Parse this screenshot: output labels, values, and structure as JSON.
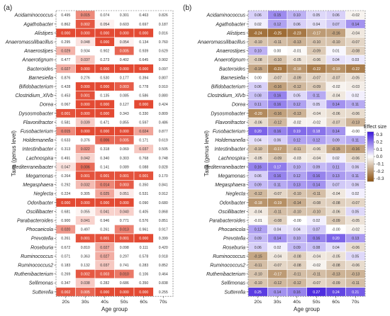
{
  "chart_data": [
    {
      "panel": "(a)",
      "type": "heatmap",
      "xlabel": "Age group",
      "ylabel": "Taxa (genus level)",
      "x": [
        "20s",
        "30s",
        "40s",
        "50s",
        "60s",
        "70s"
      ],
      "y": [
        "Acidaminococcus",
        "Agathobacter",
        "Alistipes",
        "Anaeromassilibacillus",
        "Anaerostipes",
        "Anaerotignum",
        "Bacteroides",
        "Barnesiella",
        "Bifidobacterium",
        "Clostridium_XlVb",
        "Dorea",
        "Dysosmobacter",
        "Flavonifractor",
        "Fusobacterium",
        "Holdemanella",
        "Intestinibacter",
        "Lachnospira",
        "Mediterraneibacter",
        "Megamonas",
        "Megasphaera",
        "Neglecta",
        "Odoribacter",
        "Oscillibacter",
        "Parabacteroides",
        "Phocaeicola",
        "Prevotella",
        "Roseburia",
        "Ruminococcus",
        "Ruminococcus2",
        "Ruthenibacterium",
        "Sellimonas",
        "Sutterella"
      ],
      "values": [
        [
          "0.495",
          "0.015",
          "0.074",
          "0.301",
          "0.463",
          "0.826"
        ],
        [
          "0.862",
          "0.002",
          "0.054",
          "0.603",
          "0.697",
          "0.187"
        ],
        [
          "0.000",
          "0.000",
          "0.000",
          "0.000",
          "0.000",
          "0.816"
        ],
        [
          "0.295",
          "0.048",
          "0.000",
          "0.054",
          "0.134",
          "0.760"
        ],
        [
          "0.029",
          "0.934",
          "0.902",
          "0.005",
          "0.939",
          "0.629"
        ],
        [
          "0.477",
          "0.037",
          "0.273",
          "0.402",
          "0.645",
          "0.902"
        ],
        [
          "0.027",
          "0.000",
          "0.000",
          "0.000",
          "0.000",
          "0.097"
        ],
        [
          "0.876",
          "0.276",
          "0.530",
          "0.177",
          "0.394",
          "0.807"
        ],
        [
          "0.428",
          "0.000",
          "0.000",
          "0.003",
          "0.778",
          "0.910"
        ],
        [
          "0.453",
          "0.001",
          "0.135",
          "0.085",
          "0.586",
          "0.880"
        ],
        [
          "0.067",
          "0.000",
          "0.000",
          "0.127",
          "0.000",
          "0.424"
        ],
        [
          "0.001",
          "0.000",
          "0.000",
          "0.343",
          "0.330",
          "0.809"
        ],
        [
          "0.581",
          "0.039",
          "0.471",
          "0.855",
          "0.597",
          "0.486"
        ],
        [
          "0.015",
          "0.000",
          "0.000",
          "0.000",
          "0.024",
          "0.877"
        ],
        [
          "0.633",
          "0.376",
          "0.006",
          "0.005",
          "0.171",
          "0.619"
        ],
        [
          "0.313",
          "0.022",
          "0.318",
          "0.069",
          "0.037",
          "0.505"
        ],
        [
          "0.491",
          "0.042",
          "0.340",
          "0.303",
          "0.768",
          "0.748"
        ],
        [
          "0.047",
          "0.006",
          "0.141",
          "0.089",
          "0.088",
          "0.828"
        ],
        [
          "0.264",
          "0.001",
          "0.001",
          "0.001",
          "0.001",
          "0.170"
        ],
        [
          "0.292",
          "0.032",
          "0.014",
          "0.003",
          "0.350",
          "0.841"
        ],
        [
          "0.224",
          "0.305",
          "0.025",
          "0.051",
          "0.531",
          "0.912"
        ],
        [
          "0.000",
          "0.000",
          "0.000",
          "0.000",
          "0.090",
          "0.680"
        ],
        [
          "0.681",
          "0.055",
          "0.041",
          "0.040",
          "0.405",
          "0.868"
        ],
        [
          "0.900",
          "0.041",
          "0.946",
          "0.771",
          "0.576",
          "0.851"
        ],
        [
          "0.020",
          "0.497",
          "0.261",
          "0.013",
          "0.961",
          "0.917"
        ],
        [
          "0.261",
          "0.001",
          "0.001",
          "0.001",
          "0.000",
          "0.399"
        ],
        [
          "0.672",
          "0.810",
          "0.027",
          "0.098",
          "0.111",
          "0.420"
        ],
        [
          "0.071",
          "0.363",
          "0.027",
          "0.297",
          "0.578",
          "0.918"
        ],
        [
          "0.183",
          "0.132",
          "0.037",
          "0.741",
          "0.283",
          "0.852"
        ],
        [
          "0.269",
          "0.002",
          "0.003",
          "0.010",
          "0.106",
          "0.464"
        ],
        [
          "0.347",
          "0.038",
          "0.282",
          "0.686",
          "0.350",
          "0.838"
        ],
        [
          "0.002",
          "0.005",
          "0.000",
          "0.000",
          "0.000",
          "0.255"
        ]
      ]
    },
    {
      "panel": "(b)",
      "type": "heatmap",
      "xlabel": "Age group",
      "ylabel": "Taxa (genus level)",
      "x": [
        "20s",
        "30s",
        "40s",
        "50s",
        "60s",
        "70s"
      ],
      "y": [
        "Acidaminococcus",
        "Agathobacter",
        "Alistipes",
        "Anaeromassilibacillus",
        "Anaerostipes",
        "Anaerotignum",
        "Bacteroides",
        "Barnesiella",
        "Bifidobacterium",
        "Clostridium_XlVb",
        "Dorea",
        "Dysosmobacter",
        "Flavonifractor",
        "Fusobacterium",
        "Holdemanella",
        "Intestinibacter",
        "Lachnospira",
        "Mediterraneibacter",
        "Megamonas",
        "Megasphaera",
        "Neglecta",
        "Odoribacter",
        "Oscillibacter",
        "Parabacteroides",
        "Phocaeicola",
        "Prevotella",
        "Roseburia",
        "Ruminococcus",
        "Ruminococcus2",
        "Ruthenibacterium",
        "Sellimonas",
        "Sutterella"
      ],
      "values": [
        [
          "0.06",
          "0.15",
          "0.10",
          "0.05",
          "0.06",
          "-0.02"
        ],
        [
          "0.02",
          "0.12",
          "0.06",
          "0.04",
          "0.07",
          "0.14"
        ],
        [
          "-0.24",
          "-0.25",
          "-0.23",
          "-0.17",
          "-0.16",
          "-0.04"
        ],
        [
          "-0.10",
          "-0.11",
          "-0.13",
          "-0.10",
          "-0.10",
          "-0.07"
        ],
        [
          "0.10",
          "0.00",
          "-0.01",
          "-0.09",
          "0.01",
          "-0.08"
        ],
        [
          "-0.08",
          "-0.10",
          "-0.05",
          "-0.06",
          "0.04",
          "0.03"
        ],
        [
          "-0.15",
          "-0.23",
          "-0.18",
          "-0.22",
          "-0.19",
          "-0.22"
        ],
        [
          "0.00",
          "-0.07",
          "-0.09",
          "-0.07",
          "-0.07",
          "-0.05"
        ],
        [
          "0.06",
          "-0.16",
          "-0.12",
          "-0.09",
          "-0.02",
          "-0.03"
        ],
        [
          "0.08",
          "0.16",
          "0.05",
          "0.11",
          "-0.04",
          "0.02"
        ],
        [
          "0.11",
          "0.16",
          "0.12",
          "0.05",
          "0.14",
          "0.11"
        ],
        [
          "-0.20",
          "-0.16",
          "-0.13",
          "-0.04",
          "-0.06",
          "-0.06"
        ],
        [
          "-0.06",
          "-0.12",
          "-0.02",
          "-0.02",
          "-0.07",
          "-0.13"
        ],
        [
          "0.20",
          "0.16",
          "0.19",
          "0.18",
          "0.14",
          "-0.00"
        ],
        [
          "0.04",
          "0.06",
          "0.12",
          "0.12",
          "0.09",
          "0.11"
        ],
        [
          "-0.10",
          "-0.17",
          "-0.11",
          "-0.06",
          "-0.15",
          "-0.16"
        ],
        [
          "-0.05",
          "-0.09",
          "-0.03",
          "-0.04",
          "0.02",
          "-0.06"
        ],
        [
          "0.16",
          "0.17",
          "0.10",
          "0.09",
          "0.11",
          "0.06"
        ],
        [
          "0.06",
          "0.16",
          "0.12",
          "0.16",
          "0.13",
          "0.11"
        ],
        [
          "0.09",
          "0.11",
          "0.13",
          "0.14",
          "0.07",
          "0.06"
        ],
        [
          "-0.12",
          "-0.07",
          "-0.10",
          "-0.11",
          "-0.04",
          "0.02"
        ],
        [
          "-0.18",
          "-0.19",
          "-0.14",
          "-0.08",
          "-0.08",
          "-0.07"
        ],
        [
          "-0.04",
          "-0.11",
          "-0.10",
          "-0.10",
          "-0.06",
          "0.05"
        ],
        [
          "-0.01",
          "-0.08",
          "-0.00",
          "0.02",
          "-0.09",
          "-0.05"
        ],
        [
          "0.12",
          "0.04",
          "0.04",
          "0.07",
          "-0.00",
          "-0.02"
        ],
        [
          "0.09",
          "0.14",
          "0.10",
          "0.16",
          "0.20",
          "0.13"
        ],
        [
          "0.06",
          "0.02",
          "0.09",
          "0.08",
          "0.04",
          "-0.06"
        ],
        [
          "-0.15",
          "-0.04",
          "-0.08",
          "-0.04",
          "-0.05",
          "0.05"
        ],
        [
          "-0.11",
          "-0.07",
          "-0.08",
          "-0.02",
          "-0.08",
          "-0.06"
        ],
        [
          "-0.10",
          "-0.17",
          "-0.11",
          "-0.11",
          "-0.13",
          "-0.13"
        ],
        [
          "-0.10",
          "-0.12",
          "-0.12",
          "-0.07",
          "-0.09",
          "-0.11"
        ],
        [
          "0.25",
          "0.14",
          "0.16",
          "0.27",
          "0.24",
          "0.21"
        ]
      ],
      "legend": {
        "title": "Effect  size",
        "ticks": [
          "0.3",
          "0.2",
          "0.1",
          "0.0",
          "-0.1",
          "-0.2",
          "-0.3"
        ],
        "range": [
          -0.3,
          0.3
        ]
      }
    }
  ],
  "colors": {
    "pvalue_low": "#e34a33",
    "pvalue_high": "#ffffff",
    "effect_positive": "#3a16dc",
    "effect_negative": "#8b4f0c",
    "effect_zero": "#ffffff"
  }
}
